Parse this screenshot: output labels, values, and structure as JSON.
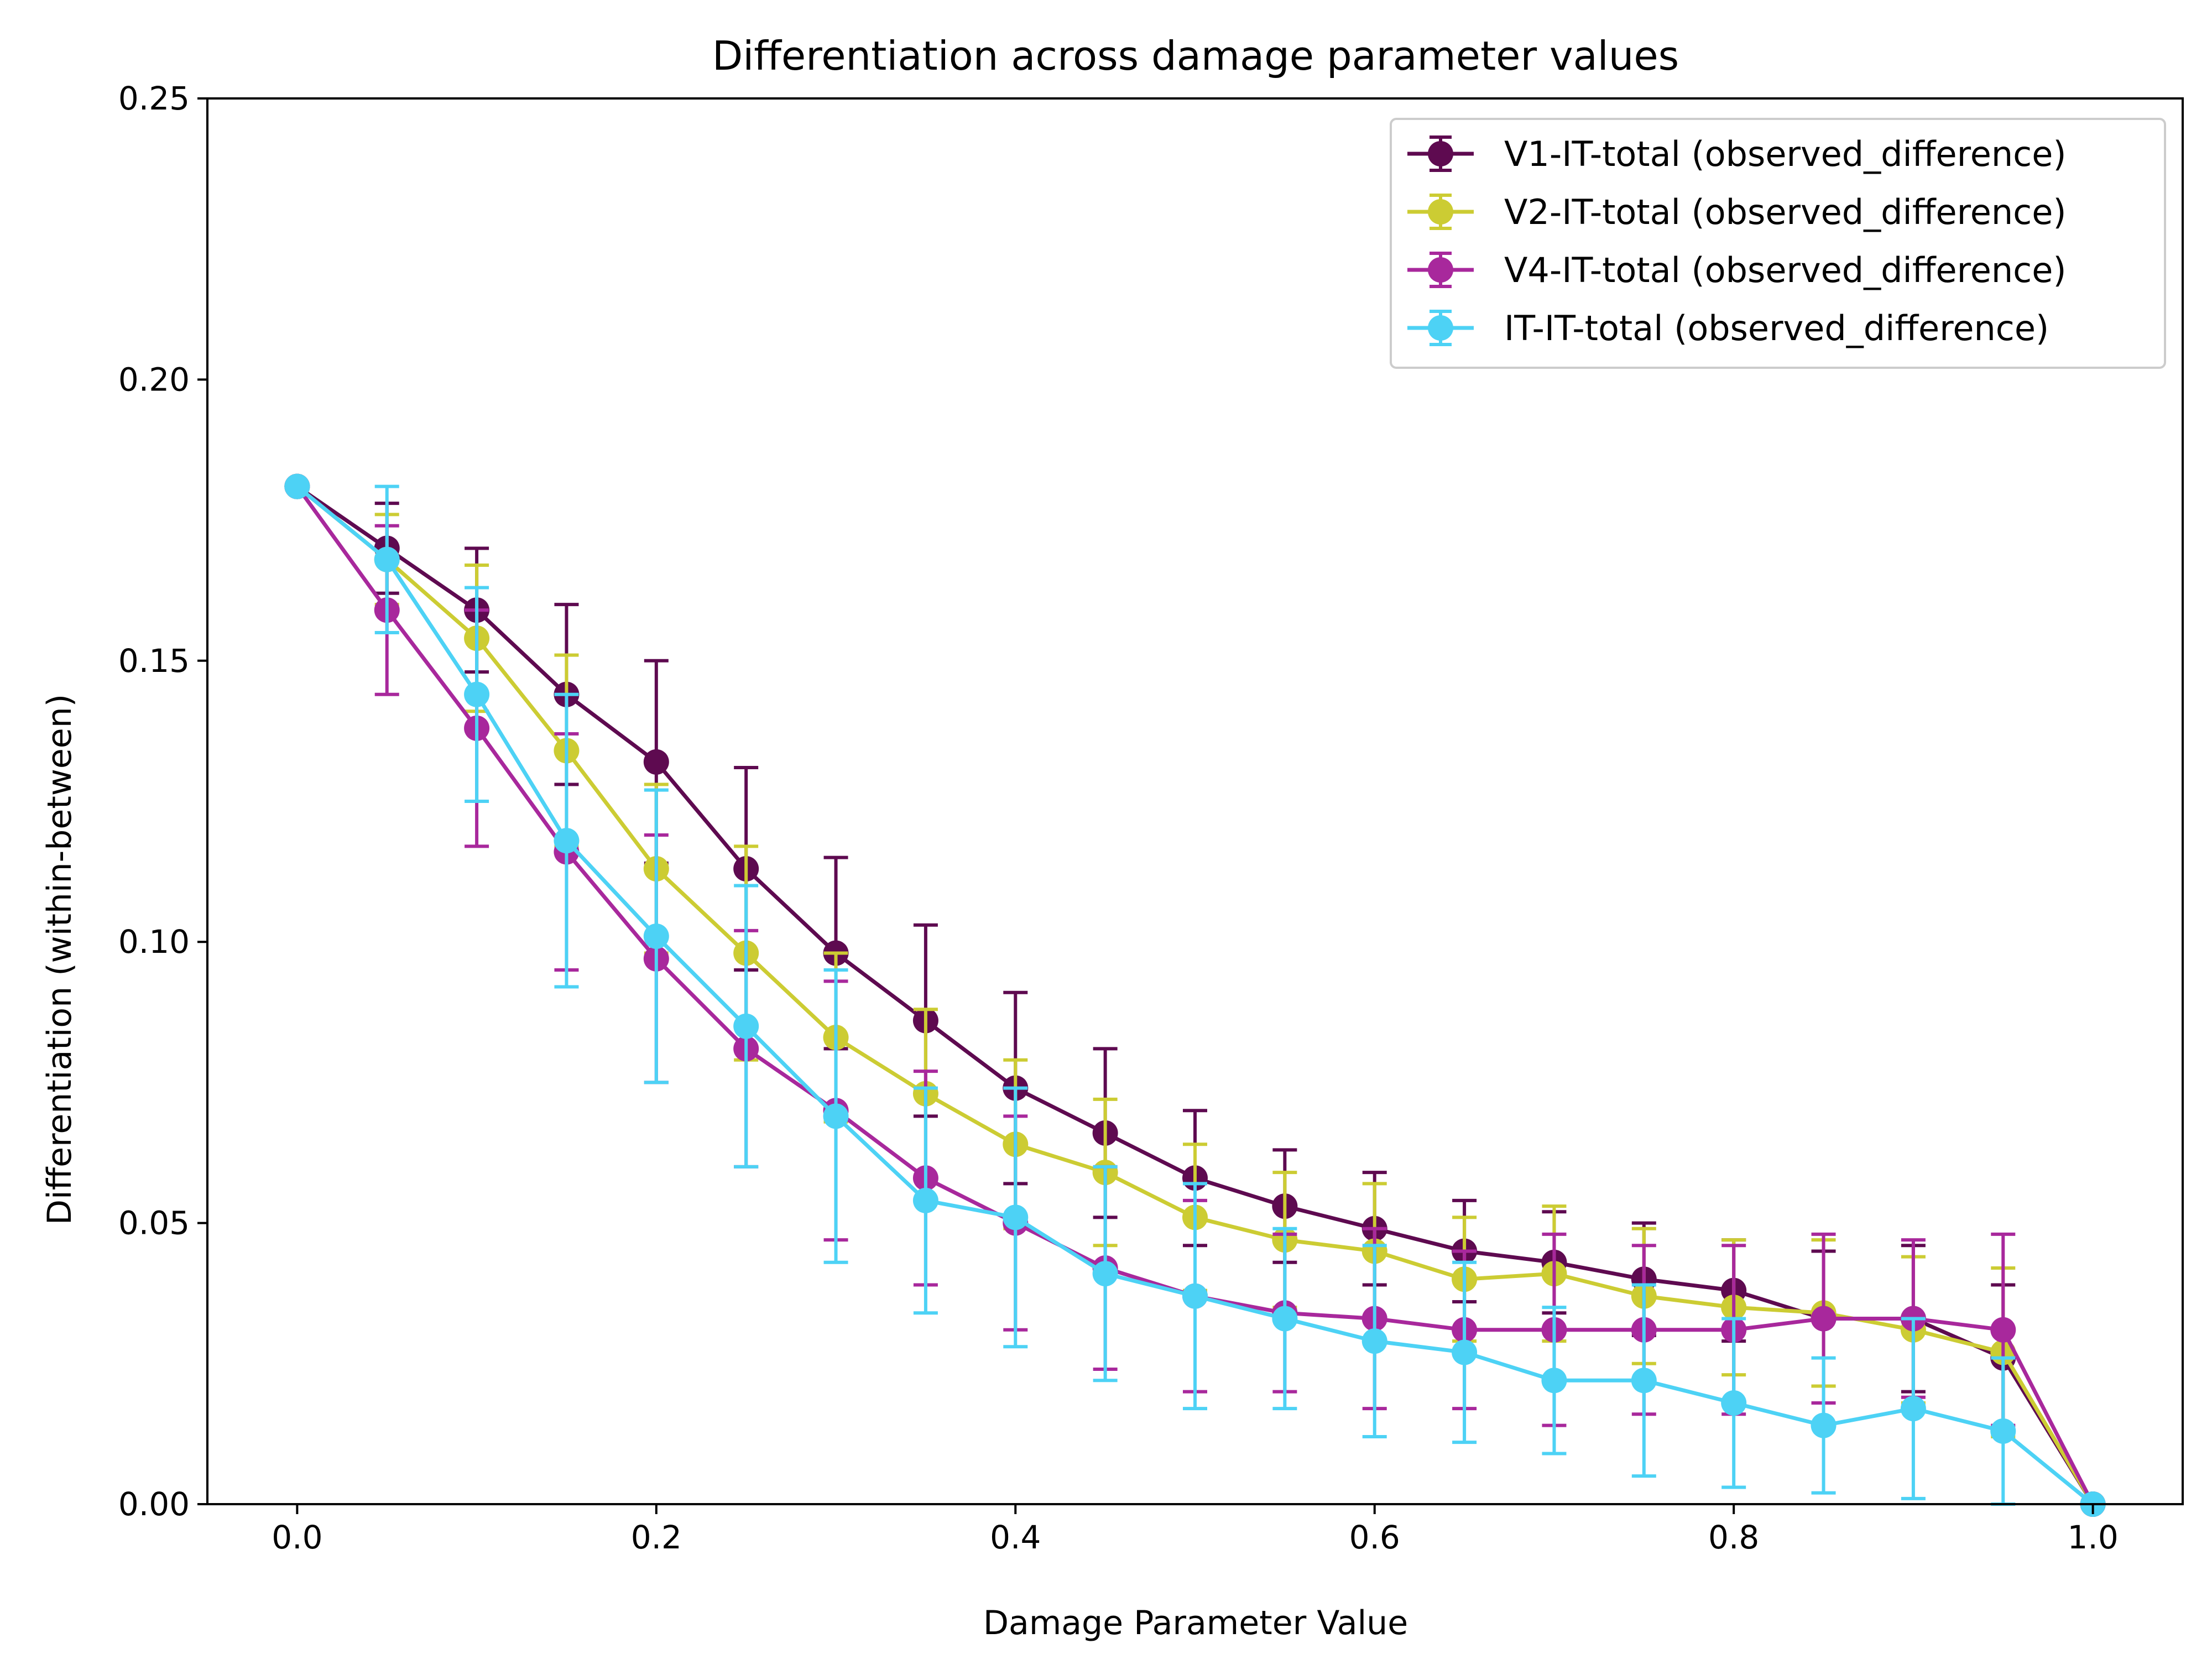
{
  "chart_data": {
    "type": "line",
    "title": "Differentiation across damage parameter values",
    "xlabel": "Damage Parameter Value",
    "ylabel": "Differentiation (within-between)",
    "xlim": [
      -0.05,
      1.05
    ],
    "ylim": [
      0,
      0.25
    ],
    "xticks": [
      0.0,
      0.2,
      0.4,
      0.6,
      0.8,
      1.0
    ],
    "xtick_labels": [
      "0.0",
      "0.2",
      "0.4",
      "0.6",
      "0.8",
      "1.0"
    ],
    "yticks": [
      0.0,
      0.05,
      0.1,
      0.15,
      0.2,
      0.25
    ],
    "ytick_labels": [
      "0.00",
      "0.05",
      "0.10",
      "0.15",
      "0.20",
      "0.25"
    ],
    "grid": false,
    "legend_position": "top-right",
    "x": [
      0.0,
      0.05,
      0.1,
      0.15,
      0.2,
      0.25,
      0.3,
      0.35,
      0.4,
      0.45,
      0.5,
      0.55,
      0.6,
      0.65,
      0.7,
      0.75,
      0.8,
      0.85,
      0.9,
      0.95,
      1.0
    ],
    "series": [
      {
        "name": "V1-IT-total (observed_difference)",
        "color": "#5e0a50",
        "values": [
          0.181,
          0.17,
          0.159,
          0.144,
          0.132,
          0.113,
          0.098,
          0.086,
          0.074,
          0.066,
          0.058,
          0.053,
          0.049,
          0.045,
          0.043,
          0.04,
          0.038,
          0.033,
          0.033,
          0.026,
          0.0
        ],
        "errors": [
          0.0,
          0.008,
          0.011,
          0.016,
          0.018,
          0.018,
          0.017,
          0.017,
          0.017,
          0.015,
          0.012,
          0.01,
          0.01,
          0.009,
          0.009,
          0.01,
          0.009,
          0.012,
          0.013,
          0.013,
          0.0
        ]
      },
      {
        "name": "V2-IT-total (observed_difference)",
        "color": "#cccc33",
        "values": [
          0.181,
          0.168,
          0.154,
          0.134,
          0.113,
          0.098,
          0.083,
          0.073,
          0.064,
          0.059,
          0.051,
          0.047,
          0.045,
          0.04,
          0.041,
          0.037,
          0.035,
          0.034,
          0.031,
          0.027,
          0.0
        ],
        "errors": [
          0.0,
          0.008,
          0.013,
          0.017,
          0.015,
          0.019,
          0.015,
          0.015,
          0.015,
          0.013,
          0.013,
          0.012,
          0.012,
          0.011,
          0.012,
          0.012,
          0.012,
          0.013,
          0.013,
          0.015,
          0.0
        ]
      },
      {
        "name": "V4-IT-total (observed_difference)",
        "color": "#a8289c",
        "values": [
          0.181,
          0.159,
          0.138,
          0.116,
          0.097,
          0.081,
          0.07,
          0.058,
          0.05,
          0.042,
          0.037,
          0.034,
          0.033,
          0.031,
          0.031,
          0.031,
          0.031,
          0.033,
          0.033,
          0.031,
          0.0
        ],
        "errors": [
          0.0,
          0.015,
          0.021,
          0.021,
          0.022,
          0.021,
          0.023,
          0.019,
          0.019,
          0.018,
          0.017,
          0.014,
          0.016,
          0.014,
          0.017,
          0.015,
          0.015,
          0.015,
          0.014,
          0.017,
          0.0
        ]
      },
      {
        "name": "IT-IT-total (observed_difference)",
        "color": "#4dd2f5",
        "values": [
          0.181,
          0.168,
          0.144,
          0.118,
          0.101,
          0.085,
          0.069,
          0.054,
          0.051,
          0.041,
          0.037,
          0.033,
          0.029,
          0.027,
          0.022,
          0.022,
          0.018,
          0.014,
          0.017,
          0.013,
          0.0
        ],
        "errors": [
          0.0,
          0.013,
          0.019,
          0.026,
          0.026,
          0.025,
          0.026,
          0.02,
          0.023,
          0.019,
          0.02,
          0.016,
          0.017,
          0.016,
          0.013,
          0.017,
          0.015,
          0.012,
          0.016,
          0.013,
          0.0
        ]
      }
    ]
  }
}
